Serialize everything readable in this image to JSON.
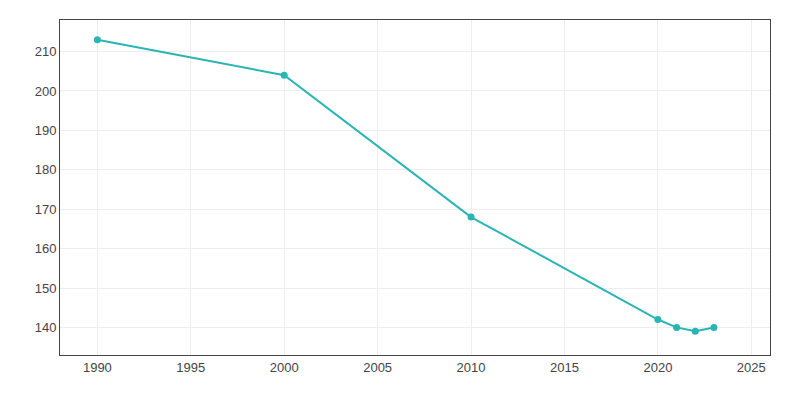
{
  "chart_data": {
    "type": "line",
    "x": [
      1990,
      2000,
      2010,
      2020,
      2021,
      2022,
      2023
    ],
    "values": [
      213,
      204,
      168,
      142,
      140,
      139,
      140
    ],
    "color": "#2ab5b5",
    "marker": "circle",
    "line_style": "solid",
    "xlim": [
      1988,
      2026
    ],
    "ylim": [
      133,
      218
    ],
    "xticks": [
      1990,
      1995,
      2000,
      2005,
      2010,
      2015,
      2020,
      2025
    ],
    "yticks": [
      140,
      150,
      160,
      170,
      180,
      190,
      200,
      210
    ],
    "grid": true
  }
}
